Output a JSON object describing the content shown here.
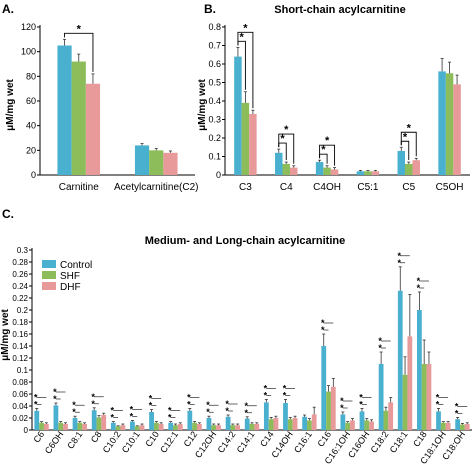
{
  "colors": {
    "control": "#4ab0cf",
    "shf": "#8cbd5a",
    "dhf": "#e89a9a",
    "sig": "#000000",
    "axis": "#000000"
  },
  "chart_data": [
    {
      "panel": "A.",
      "type": "bar",
      "title": "",
      "ylabel": "μM/mg wet",
      "xlabel": "",
      "ylim": [
        0,
        120
      ],
      "yticks": [
        0,
        20,
        40,
        60,
        80,
        100,
        120
      ],
      "categories": [
        "Carnitine",
        "Acetylcarnitine(C2)"
      ],
      "series": [
        {
          "key": "control",
          "values": [
            105,
            24
          ],
          "errors": [
            5,
            1.5
          ]
        },
        {
          "key": "shf",
          "values": [
            92,
            20
          ],
          "errors": [
            6,
            1.5
          ]
        },
        {
          "key": "dhf",
          "values": [
            74,
            18
          ],
          "errors": [
            8,
            1.5
          ]
        }
      ],
      "significance": [
        {
          "category": 0,
          "from": "control",
          "to": "dhf",
          "label": "*"
        }
      ],
      "grid": false,
      "legend": null
    },
    {
      "panel": "B.",
      "type": "bar",
      "title": "Short-chain acylcarnitine",
      "ylabel": "μM/mg wet",
      "xlabel": "",
      "ylim": [
        0,
        0.8
      ],
      "yticks": [
        0,
        0.1,
        0.2,
        0.3,
        0.4,
        0.5,
        0.6,
        0.7,
        0.8
      ],
      "yticklabels": [
        "0",
        "0.1",
        "0.2",
        "0.3",
        "0.4",
        "0.5",
        "0.6",
        "0.7",
        "0.8"
      ],
      "categories": [
        "C3",
        "C4",
        "C4OH",
        "C5:1",
        "C5",
        "C5OH"
      ],
      "series": [
        {
          "key": "control",
          "values": [
            0.64,
            0.12,
            0.07,
            0.02,
            0.13,
            0.56
          ],
          "errors": [
            0.05,
            0.02,
            0.01,
            0.005,
            0.02,
            0.07
          ]
        },
        {
          "key": "shf",
          "values": [
            0.39,
            0.06,
            0.04,
            0.02,
            0.06,
            0.55
          ],
          "errors": [
            0.06,
            0.01,
            0.01,
            0.005,
            0.01,
            0.06
          ]
        },
        {
          "key": "dhf",
          "values": [
            0.33,
            0.04,
            0.03,
            0.02,
            0.08,
            0.49
          ],
          "errors": [
            0.02,
            0.01,
            0.01,
            0.005,
            0.01,
            0.05
          ]
        }
      ],
      "significance": [
        {
          "category": 0,
          "from": "control",
          "to": "shf",
          "label": "*"
        },
        {
          "category": 0,
          "from": "control",
          "to": "dhf",
          "label": "*"
        },
        {
          "category": 1,
          "from": "control",
          "to": "shf",
          "label": "*"
        },
        {
          "category": 1,
          "from": "control",
          "to": "dhf",
          "label": "*"
        },
        {
          "category": 2,
          "from": "control",
          "to": "shf",
          "label": "*"
        },
        {
          "category": 2,
          "from": "control",
          "to": "dhf",
          "label": "*"
        },
        {
          "category": 4,
          "from": "control",
          "to": "shf",
          "label": "*"
        },
        {
          "category": 4,
          "from": "control",
          "to": "dhf",
          "label": "*"
        }
      ],
      "grid": false,
      "legend": null
    },
    {
      "panel": "C.",
      "type": "bar",
      "title": "Medium- and Long-chain acylcarnitine",
      "ylabel": "μM/mg wet",
      "xlabel": "",
      "ylim": [
        0,
        0.3
      ],
      "yticks": [
        0,
        0.02,
        0.04,
        0.06,
        0.08,
        0.1,
        0.12,
        0.14,
        0.16,
        0.18,
        0.2,
        0.22,
        0.24,
        0.26,
        0.28,
        0.3
      ],
      "yticklabels": [
        "0",
        "0.02",
        "0.04",
        "0.06",
        "0.08",
        "0.1",
        "0.12",
        "0.14",
        "0.16",
        "0.18",
        "0.2",
        "0.22",
        "0.24",
        "0.26",
        "0.28",
        "0.3"
      ],
      "categories": [
        "C6",
        "C6OH",
        "C8:1",
        "C8",
        "C10:2",
        "C10:1",
        "C10",
        "C12:1",
        "C12",
        "C12OH",
        "C14:2",
        "C14:1",
        "C14",
        "C14OH",
        "C16:1",
        "C16",
        "C16:1OH",
        "C16OH",
        "C18:2",
        "C18:1",
        "C18",
        "C18:1OH",
        "C18:OH"
      ],
      "series": [
        {
          "name": "Control",
          "key": "control",
          "values": [
            0.032,
            0.041,
            0.02,
            0.033,
            0.012,
            0.014,
            0.03,
            0.012,
            0.032,
            0.02,
            0.022,
            0.019,
            0.046,
            0.045,
            0.022,
            0.14,
            0.026,
            0.031,
            0.11,
            0.232,
            0.2,
            0.031,
            0.018
          ],
          "errors": [
            0.004,
            0.004,
            0.003,
            0.004,
            0.002,
            0.002,
            0.004,
            0.002,
            0.004,
            0.003,
            0.003,
            0.003,
            0.005,
            0.006,
            0.003,
            0.02,
            0.004,
            0.005,
            0.02,
            0.04,
            0.03,
            0.005,
            0.003
          ]
        },
        {
          "name": "SHF",
          "key": "shf",
          "values": [
            0.012,
            0.012,
            0.012,
            0.021,
            0.006,
            0.006,
            0.012,
            0.008,
            0.012,
            0.008,
            0.008,
            0.01,
            0.018,
            0.018,
            0.016,
            0.064,
            0.012,
            0.016,
            0.032,
            0.092,
            0.11,
            0.012,
            0.009
          ],
          "errors": [
            0.002,
            0.002,
            0.002,
            0.003,
            0.001,
            0.001,
            0.002,
            0.002,
            0.002,
            0.002,
            0.002,
            0.002,
            0.003,
            0.003,
            0.003,
            0.01,
            0.002,
            0.003,
            0.006,
            0.03,
            0.04,
            0.002,
            0.002
          ]
        },
        {
          "name": "DHF",
          "key": "dhf",
          "values": [
            0.01,
            0.01,
            0.01,
            0.025,
            0.008,
            0.008,
            0.01,
            0.01,
            0.01,
            0.008,
            0.008,
            0.01,
            0.02,
            0.02,
            0.026,
            0.072,
            0.016,
            0.014,
            0.046,
            0.156,
            0.11,
            0.012,
            0.01
          ],
          "errors": [
            0.002,
            0.002,
            0.002,
            0.003,
            0.002,
            0.002,
            0.002,
            0.002,
            0.002,
            0.002,
            0.002,
            0.002,
            0.003,
            0.003,
            0.012,
            0.014,
            0.003,
            0.003,
            0.008,
            0.07,
            0.02,
            0.002,
            0.002
          ]
        }
      ],
      "significance_categories": [
        0,
        1,
        2,
        3,
        4,
        5,
        6,
        7,
        8,
        9,
        10,
        11,
        12,
        13,
        15,
        16,
        17,
        18,
        19,
        20,
        21,
        22
      ],
      "grid": false,
      "legend": "top-left"
    }
  ]
}
